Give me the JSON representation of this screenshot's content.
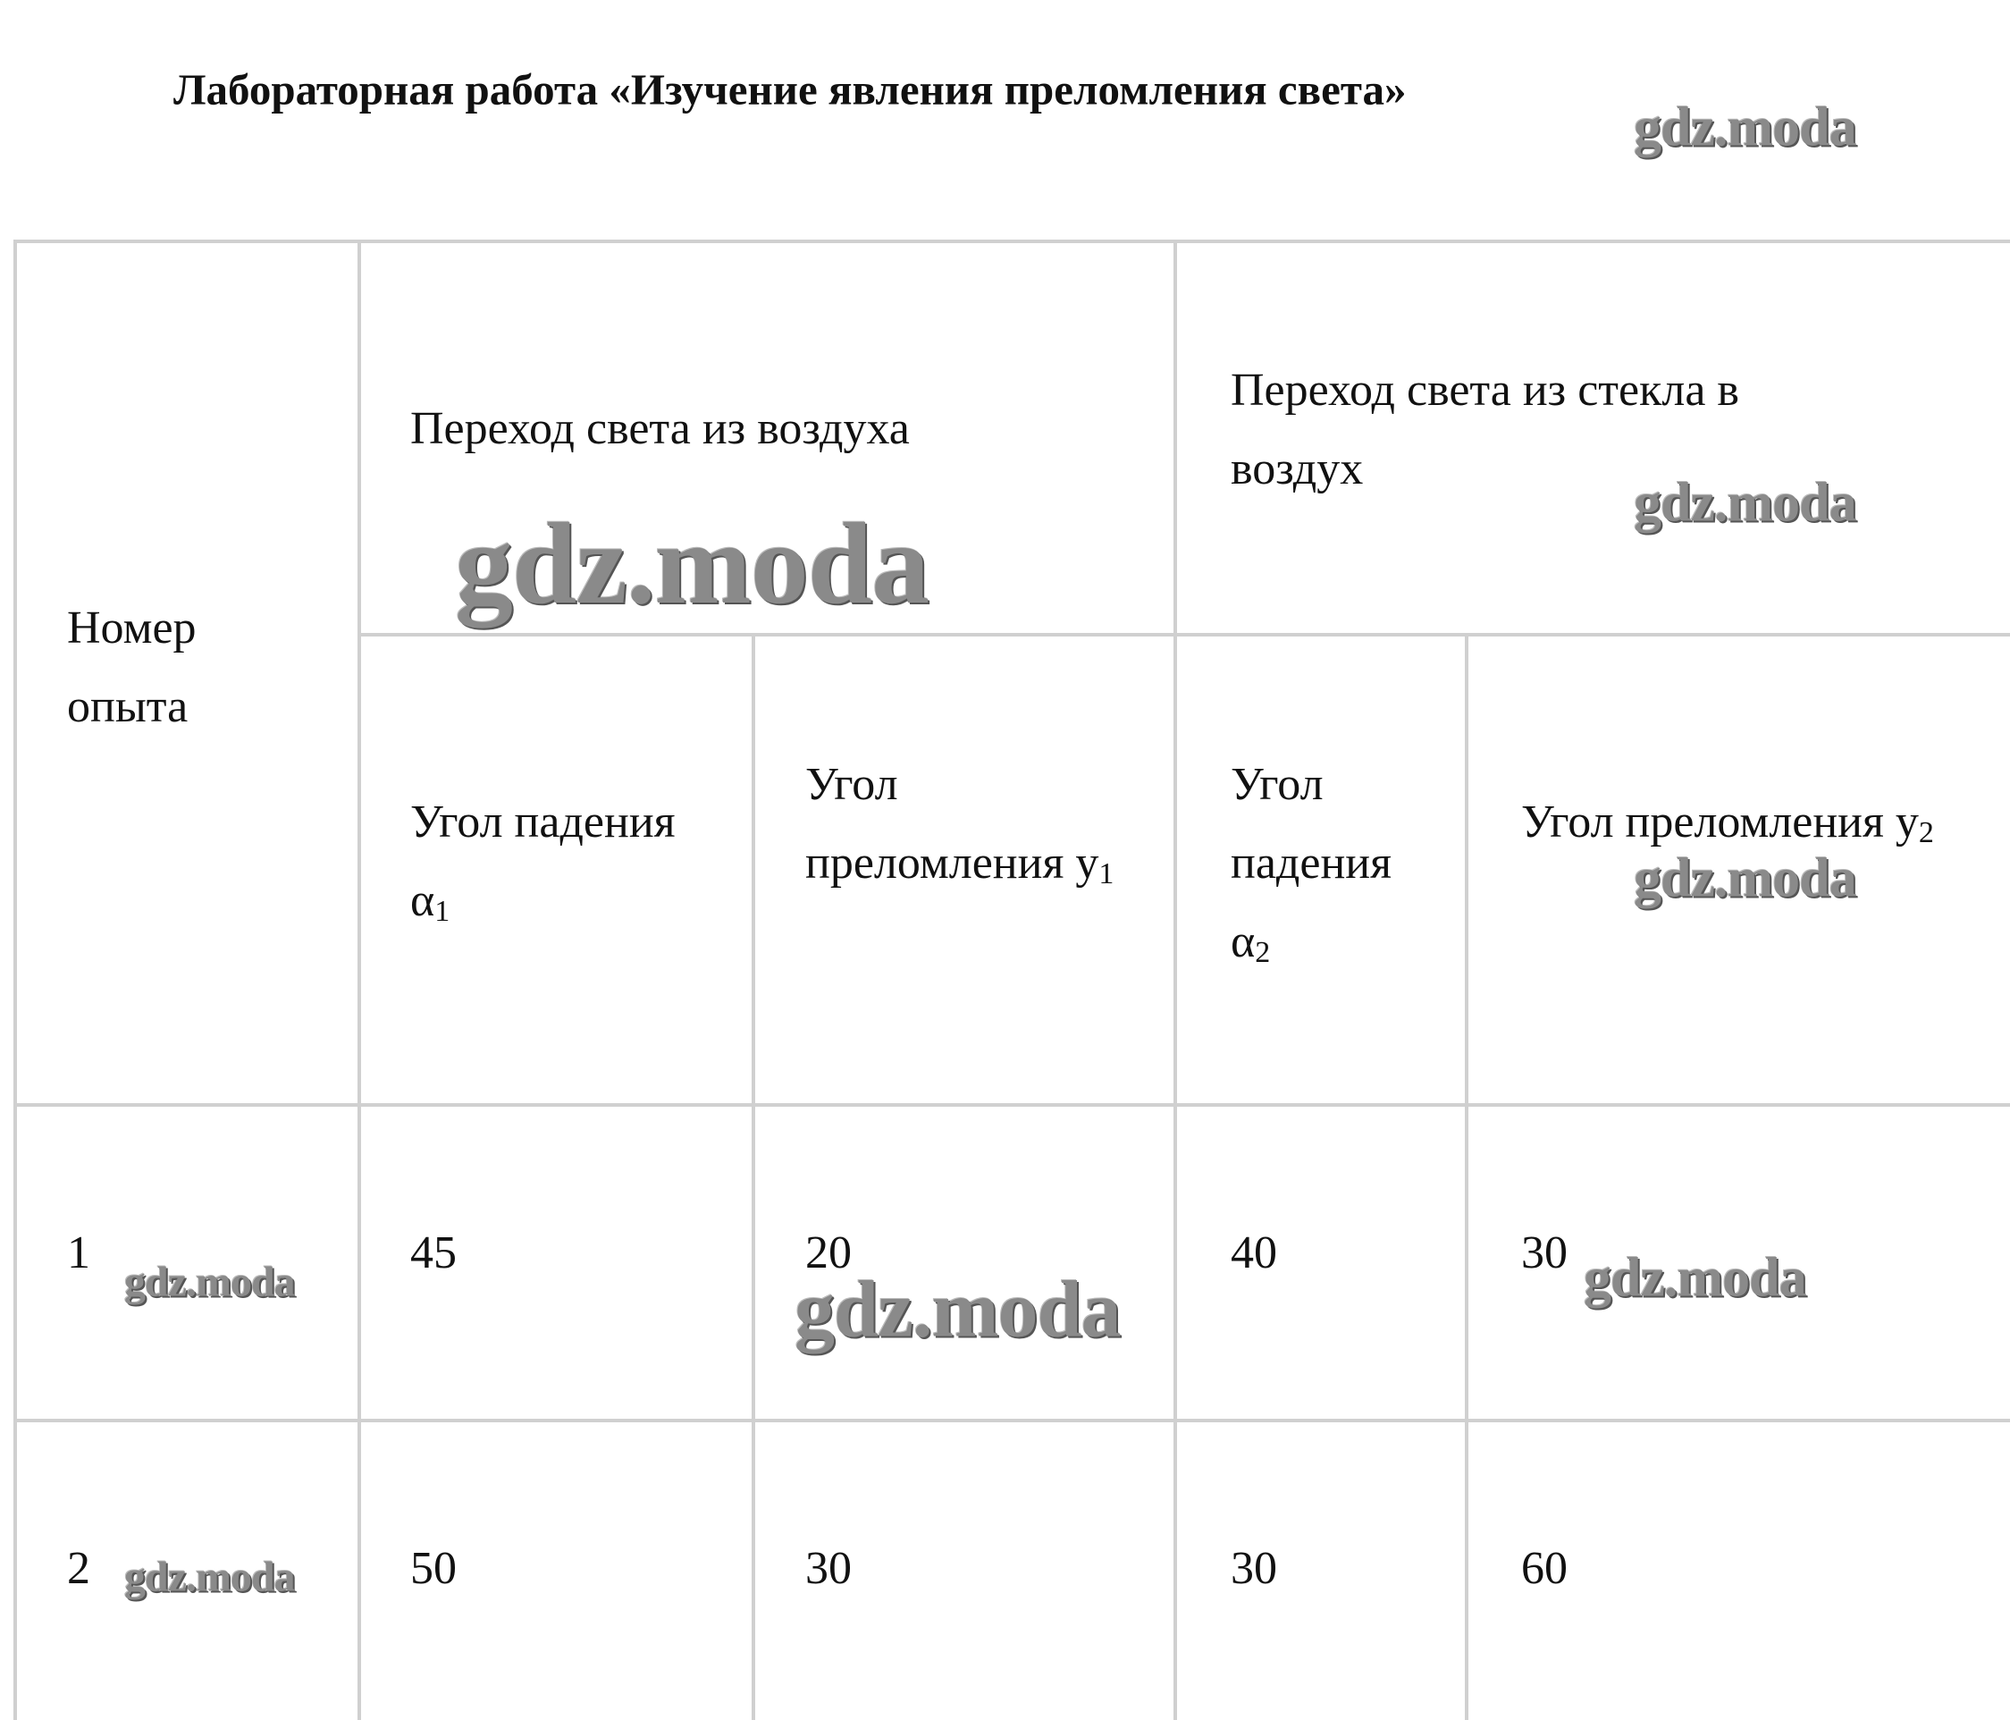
{
  "title": "Лабораторная работа «Изучение явления преломления света»",
  "table": {
    "header": {
      "number": "Номер опыта",
      "group1": "Переход света из воздуха",
      "group2": "Переход света из стекла в воздух",
      "columns": [
        {
          "text": "Угол падения α",
          "sub": "1"
        },
        {
          "text": "Угол преломления у",
          "sub": "1"
        },
        {
          "text": "Угол падения α",
          "sub": "2"
        },
        {
          "text": "Угол преломления у",
          "sub": "2"
        }
      ]
    },
    "rows": [
      [
        "1",
        "45",
        "20",
        "40",
        "30"
      ],
      [
        "2",
        "50",
        "30",
        "30",
        "60"
      ]
    ]
  },
  "watermarks": [
    "gdz.moda",
    "gdz.moda",
    "gdz.moda",
    "gdz.moda",
    "gdz.moda",
    "gdz.moda",
    "gdz.moda",
    "gdz.moda"
  ]
}
